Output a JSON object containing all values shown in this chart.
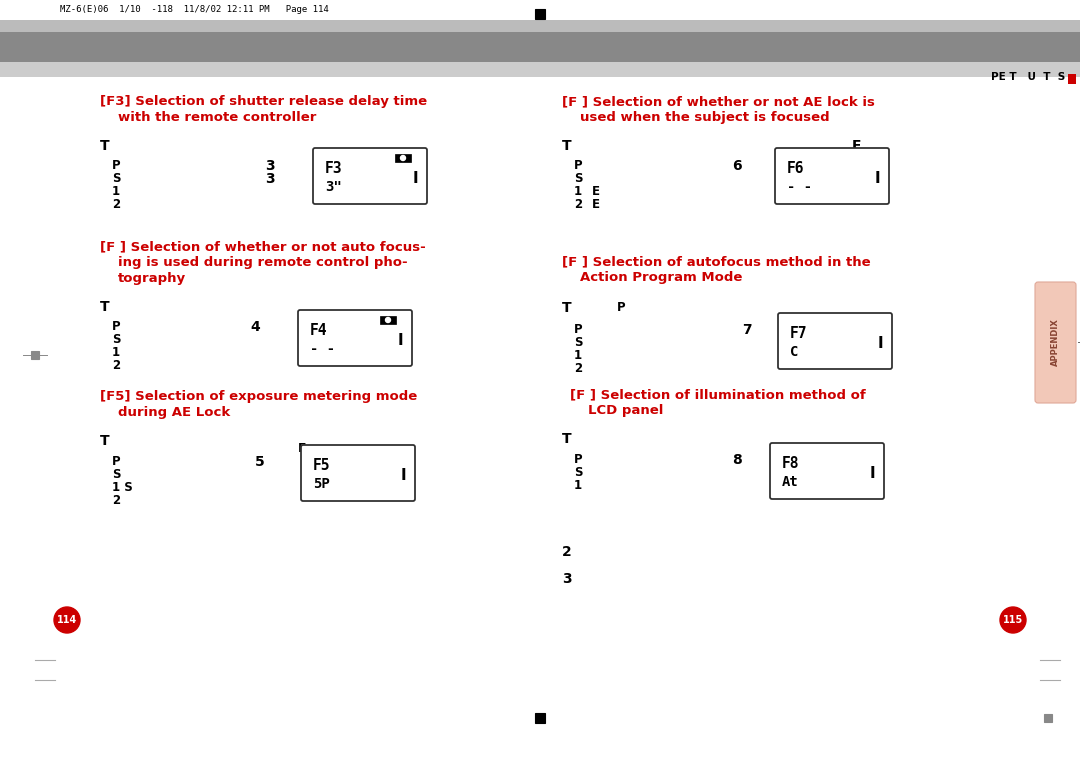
{
  "bg_color": "#ffffff",
  "red_color": "#cc0000",
  "black_color": "#111111",
  "gray_dark": "#888888",
  "gray_light": "#bbbbbb",
  "page_num_left": "114",
  "page_num_right": "115",
  "appendix_color": "#f2c8b8",
  "header_text": "MZ-6(E)06  1/10  -118  11/8/02 12:11 PM   Page 114",
  "header_right": "PE T   U  T  S"
}
